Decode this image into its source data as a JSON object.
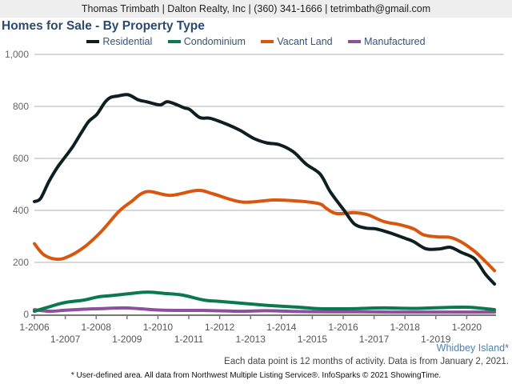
{
  "header": {
    "contact_line": "Thomas Trimbath | Dalton Realty, Inc | (360) 341-1666 | tetrimbath@gmail.com"
  },
  "chart_data": {
    "type": "line",
    "title": "Homes for Sale - By Property Type",
    "xlabel": "",
    "ylabel": "",
    "xlim": [
      2006.0,
      2020.95
    ],
    "ylim": [
      0,
      1000
    ],
    "y_ticks": [
      0,
      200,
      400,
      600,
      800,
      1000
    ],
    "y_tick_labels": [
      "0",
      "200",
      "400",
      "600",
      "800",
      "1,000"
    ],
    "x_ticks": [
      2006,
      2007,
      2008,
      2009,
      2010,
      2011,
      2012,
      2013,
      2014,
      2015,
      2016,
      2017,
      2018,
      2019,
      2020
    ],
    "x_tick_labels": [
      "1-2006",
      "1-2007",
      "1-2008",
      "1-2009",
      "1-2010",
      "1-2011",
      "1-2012",
      "1-2013",
      "1-2014",
      "1-2015",
      "1-2016",
      "1-2017",
      "1-2018",
      "1-2019",
      "1-2020"
    ],
    "grid": true,
    "legend_position": "top-center",
    "series": [
      {
        "name": "Residential",
        "color": "#0e1f24",
        "x": [
          2006.0,
          2006.2,
          2006.47,
          2006.73,
          2006.98,
          2007.24,
          2007.5,
          2007.76,
          2008.02,
          2008.28,
          2008.46,
          2008.7,
          2009.03,
          2009.37,
          2009.63,
          2010.07,
          2010.33,
          2010.84,
          2011.03,
          2011.36,
          2011.7,
          2012.22,
          2012.66,
          2013.1,
          2013.51,
          2013.95,
          2014.39,
          2014.8,
          2015.25,
          2015.58,
          2016.03,
          2016.36,
          2016.73,
          2017.06,
          2017.5,
          2018.02,
          2018.28,
          2018.69,
          2019.13,
          2019.47,
          2019.83,
          2020.25,
          2020.61,
          2020.9
        ],
        "values": [
          434,
          446,
          511,
          563,
          603,
          645,
          695,
          742,
          769,
          815,
          834,
          840,
          845,
          825,
          818,
          806,
          818,
          795,
          788,
          757,
          754,
          732,
          708,
          677,
          660,
          652,
          625,
          578,
          540,
          472,
          400,
          348,
          332,
          329,
          314,
          292,
          280,
          252,
          252,
          258,
          238,
          214,
          154,
          117
        ]
      },
      {
        "name": "Condominium",
        "color": "#0a7a4e",
        "x": [
          2006.0,
          2006.5,
          2007.0,
          2007.6,
          2008.1,
          2008.65,
          2009.15,
          2009.67,
          2010.2,
          2010.8,
          2011.5,
          2012.0,
          2012.7,
          2013.5,
          2014.5,
          2015.25,
          2016.3,
          2017.3,
          2018.35,
          2019.4,
          2020.15,
          2020.9
        ],
        "values": [
          12,
          30,
          46,
          55,
          68,
          74,
          81,
          86,
          81,
          74,
          55,
          50,
          43,
          35,
          28,
          22,
          22,
          25,
          23,
          27,
          27,
          18
        ]
      },
      {
        "name": "Vacant Land",
        "color": "#d9560f",
        "x": [
          2006.0,
          2006.31,
          2006.75,
          2007.16,
          2007.68,
          2008.2,
          2008.72,
          2009.11,
          2009.63,
          2010.4,
          2011.28,
          2011.8,
          2012.74,
          2013.77,
          2014.73,
          2015.25,
          2015.43,
          2015.77,
          2016.36,
          2016.8,
          2017.32,
          2017.84,
          2018.28,
          2018.61,
          2019.06,
          2019.47,
          2019.83,
          2020.25,
          2020.61,
          2020.9
        ],
        "values": [
          272,
          229,
          212,
          226,
          265,
          323,
          394,
          431,
          472,
          458,
          477,
          463,
          432,
          440,
          434,
          425,
          410,
          388,
          391,
          383,
          357,
          345,
          329,
          306,
          298,
          296,
          278,
          243,
          203,
          168
        ]
      },
      {
        "name": "Manufactured",
        "color": "#8e4f9c",
        "x": [
          2006.0,
          2006.5,
          2007.0,
          2007.6,
          2008.1,
          2008.9,
          2009.4,
          2010.2,
          2011.6,
          2012.65,
          2013.5,
          2014.5,
          2015.5,
          2016.5,
          2017.5,
          2018.5,
          2019.5,
          2020.9
        ],
        "values": [
          18,
          12,
          16,
          20,
          22,
          25,
          22,
          16,
          15,
          12,
          14,
          11,
          10,
          10,
          9,
          9,
          9,
          9
        ]
      }
    ]
  },
  "footer": {
    "area_label": "Whidbey Island*",
    "note": "Each data point is 12 months of activity. Data is from January 2, 2021.",
    "disclaimer": "* User-defined area. All data from Northwest Multiple Listing Service®. InfoSparks © 2021 ShowingTime."
  }
}
